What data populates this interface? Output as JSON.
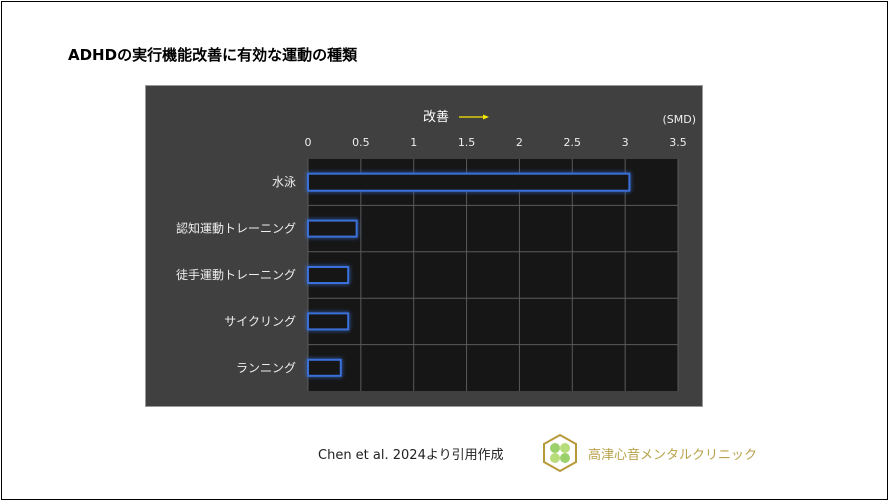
{
  "title": "ADHDの実行機能改善に有効な運動の種類",
  "chart_data": {
    "type": "bar",
    "orientation": "horizontal",
    "categories": [
      "水泳",
      "認知運動トレーニング",
      "徒手運動トレーニング",
      "サイクリング",
      "ランニング"
    ],
    "values": [
      3.04,
      0.46,
      0.38,
      0.38,
      0.31
    ],
    "axis_title": "改善",
    "unit": "(SMD)",
    "xlim": [
      0,
      3.5
    ],
    "xticks": [
      "0",
      "0.5",
      "1",
      "1.5",
      "2",
      "2.5",
      "3",
      "3.5"
    ],
    "grid": true,
    "colors": {
      "bar_outline": "#3a6fd8",
      "plot_bg": "#161616",
      "panel_bg": "#404040",
      "arrow": "#f5e800"
    }
  },
  "footer": {
    "citation": "Chen et al. 2024より引用作成",
    "clinic": "高津心音メンタルクリニック"
  }
}
